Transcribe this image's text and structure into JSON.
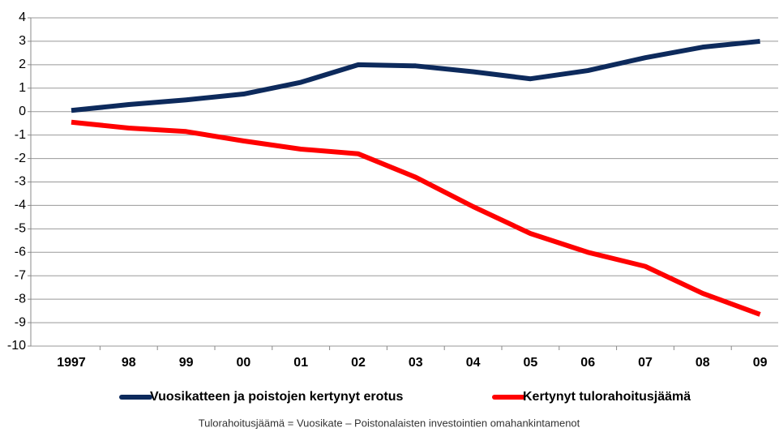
{
  "chart_data": {
    "type": "line",
    "categories": [
      "1997",
      "98",
      "99",
      "00",
      "01",
      "02",
      "03",
      "04",
      "05",
      "06",
      "07",
      "08",
      "09"
    ],
    "series": [
      {
        "name": "Vuosikatteen ja poistojen kertynyt erotus",
        "color": "#0d2a5c",
        "values": [
          0.05,
          0.3,
          0.5,
          0.75,
          1.25,
          2.0,
          1.95,
          1.7,
          1.4,
          1.75,
          2.3,
          2.75,
          3.0
        ]
      },
      {
        "name": "Kertynyt tulorahoitusjäämä",
        "color": "#ff0000",
        "values": [
          -0.45,
          -0.7,
          -0.85,
          -1.25,
          -1.6,
          -1.8,
          -2.8,
          -4.05,
          -5.2,
          -6.0,
          -6.6,
          -7.75,
          -8.65
        ]
      }
    ],
    "ylim": [
      -10,
      4
    ],
    "yticks": [
      -10,
      -9,
      -8,
      -7,
      -6,
      -5,
      -4,
      -3,
      -2,
      -1,
      0,
      1,
      2,
      3,
      4
    ],
    "grid": true,
    "note": "Tulorahoitusjäämä = Vuosikate  –  Poistonalaisten investointien omahankintamenot"
  }
}
